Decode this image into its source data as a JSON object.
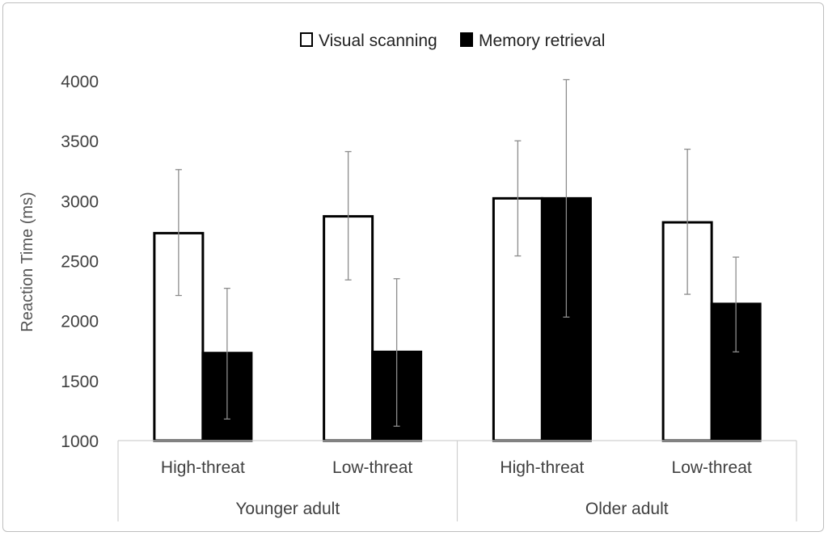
{
  "chart_data": {
    "type": "bar",
    "ylabel": "Reaction Time (ms)",
    "ylim": [
      1000,
      4000
    ],
    "yticks": [
      1000,
      1500,
      2000,
      2500,
      3000,
      3500,
      4000
    ],
    "groups": [
      {
        "label": "Younger adult",
        "categories": [
          "High-threat",
          "Low-threat"
        ]
      },
      {
        "label": "Older adult",
        "categories": [
          "High-threat",
          "Low-threat"
        ]
      }
    ],
    "categories": [
      "High-threat",
      "Low-threat",
      "High-threat",
      "Low-threat"
    ],
    "series": [
      {
        "name": "Visual scanning",
        "fill": "#ffffff",
        "values": [
          2730,
          2870,
          3020,
          2820
        ],
        "error_low": [
          2210,
          2340,
          2540,
          2220
        ],
        "error_high": [
          3260,
          3410,
          3500,
          3430
        ]
      },
      {
        "name": "Memory retrieval",
        "fill": "#000000",
        "values": [
          1730,
          1740,
          3020,
          2140
        ],
        "error_low": [
          1180,
          1120,
          2030,
          1740
        ],
        "error_high": [
          2270,
          2350,
          4010,
          2530
        ]
      }
    ],
    "legend_position": "top",
    "grid": false
  }
}
